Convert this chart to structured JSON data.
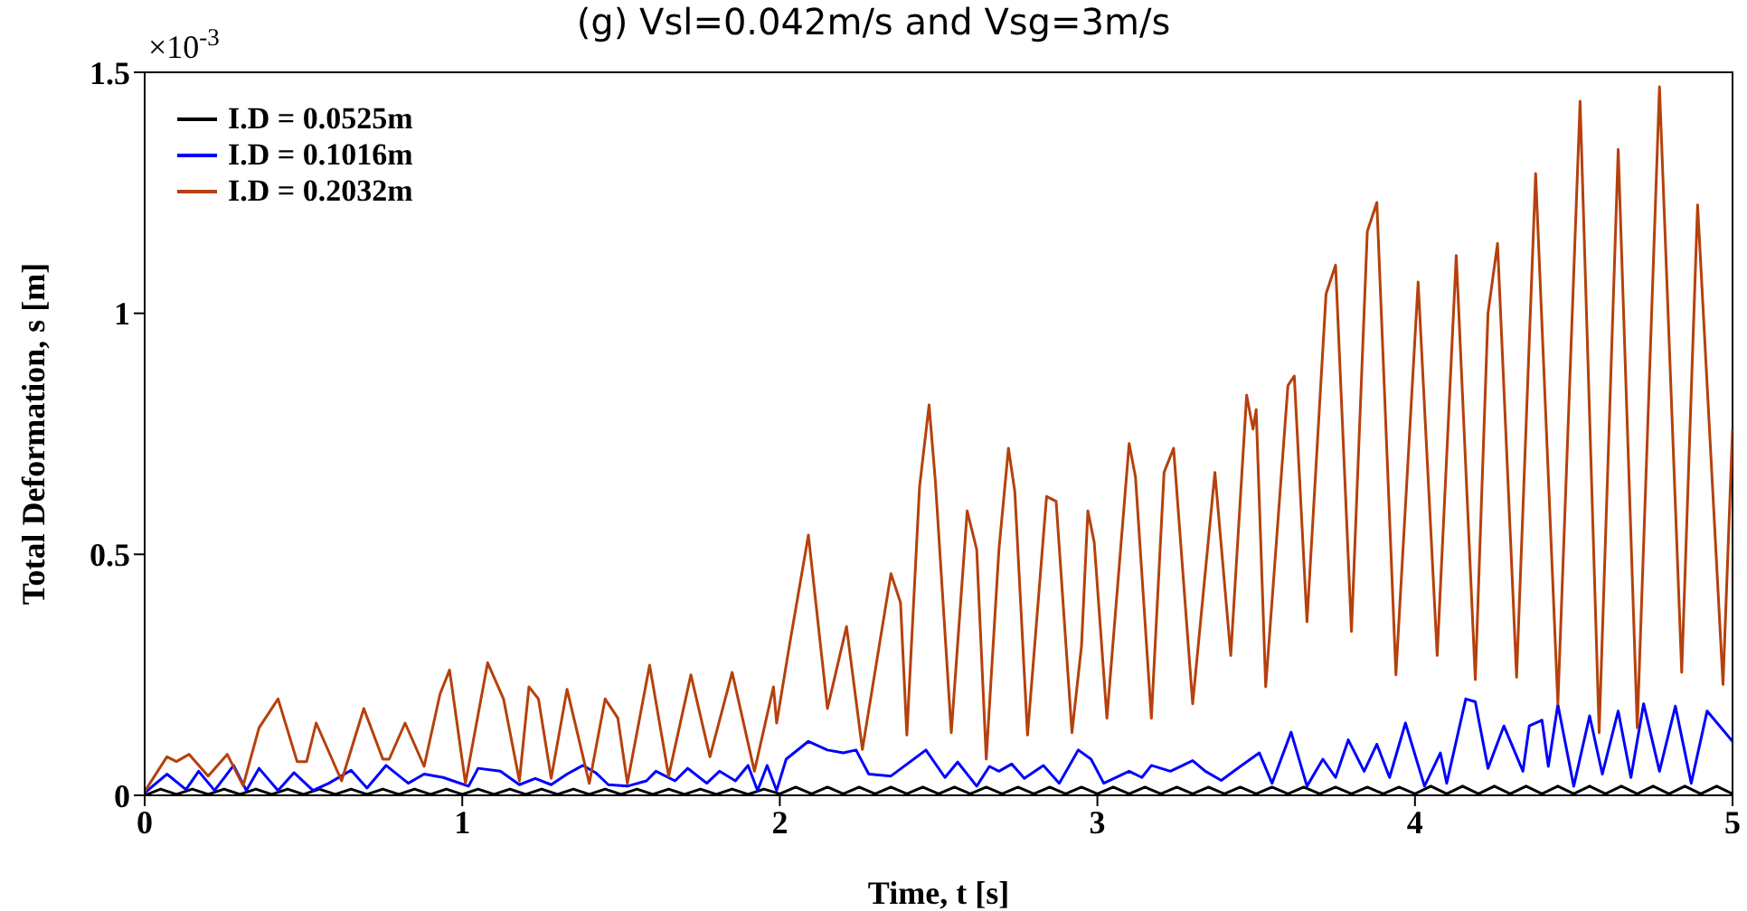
{
  "chart_data": {
    "type": "line",
    "title": "(g) Vsl=0.042m/s and Vsg=3m/s",
    "xlabel": "Time, t [s]",
    "ylabel": "Total Deformation, s [m]",
    "annotations": [
      "×10$^{-3}$"
    ],
    "xlim": [
      0,
      5
    ],
    "xticks": [
      0,
      1,
      2,
      3,
      4,
      5
    ],
    "ylim": [
      0,
      1.5
    ],
    "yticks": [
      0,
      0.5,
      1,
      1.5
    ],
    "grid": false,
    "legend": "top left",
    "line_style": "solid",
    "series": [
      {
        "name": "I.D = 0.0525m",
        "color": "#000000",
        "x": [
          0,
          0.05,
          0.1,
          0.15,
          0.2,
          0.25,
          0.3,
          0.35,
          0.4,
          0.45,
          0.5,
          0.55,
          0.6,
          0.65,
          0.7,
          0.75,
          0.8,
          0.85,
          0.9,
          0.95,
          1,
          1.05,
          1.1,
          1.15,
          1.2,
          1.25,
          1.3,
          1.35,
          1.4,
          1.45,
          1.5,
          1.55,
          1.6,
          1.65,
          1.7,
          1.75,
          1.8,
          1.85,
          1.9,
          1.95,
          2,
          2.05,
          2.1,
          2.15,
          2.2,
          2.25,
          2.3,
          2.35,
          2.4,
          2.45,
          2.5,
          2.55,
          2.6,
          2.65,
          2.7,
          2.75,
          2.8,
          2.85,
          2.9,
          2.95,
          3,
          3.05,
          3.1,
          3.15,
          3.2,
          3.25,
          3.3,
          3.35,
          3.4,
          3.45,
          3.5,
          3.55,
          3.6,
          3.65,
          3.7,
          3.75,
          3.8,
          3.85,
          3.9,
          3.95,
          4,
          4.05,
          4.1,
          4.15,
          4.2,
          4.25,
          4.3,
          4.35,
          4.4,
          4.45,
          4.5,
          4.55,
          4.6,
          4.65,
          4.7,
          4.75,
          4.8,
          4.85,
          4.9,
          4.95,
          5
        ],
        "values": [
          0,
          0.013,
          0.002,
          0.013,
          0.002,
          0.013,
          0.002,
          0.013,
          0.002,
          0.013,
          0.002,
          0.013,
          0.002,
          0.013,
          0.002,
          0.013,
          0.002,
          0.013,
          0.002,
          0.013,
          0.002,
          0.013,
          0.002,
          0.013,
          0.002,
          0.013,
          0.002,
          0.013,
          0.002,
          0.013,
          0.002,
          0.013,
          0.002,
          0.013,
          0.002,
          0.013,
          0.002,
          0.013,
          0.002,
          0.013,
          0.003,
          0.017,
          0.003,
          0.017,
          0.003,
          0.017,
          0.003,
          0.017,
          0.003,
          0.017,
          0.003,
          0.017,
          0.003,
          0.017,
          0.003,
          0.017,
          0.003,
          0.017,
          0.003,
          0.017,
          0.003,
          0.017,
          0.003,
          0.017,
          0.003,
          0.017,
          0.003,
          0.017,
          0.003,
          0.017,
          0.003,
          0.017,
          0.003,
          0.017,
          0.003,
          0.017,
          0.003,
          0.017,
          0.003,
          0.017,
          0.003,
          0.019,
          0.003,
          0.019,
          0.003,
          0.019,
          0.003,
          0.019,
          0.003,
          0.019,
          0.003,
          0.019,
          0.003,
          0.019,
          0.003,
          0.019,
          0.003,
          0.019,
          0.003,
          0.019,
          0.003
        ]
      },
      {
        "name": "I.D = 0.1016m",
        "color": "#0000ff",
        "x": [
          0,
          0.07,
          0.13,
          0.17,
          0.22,
          0.28,
          0.32,
          0.36,
          0.42,
          0.47,
          0.53,
          0.58,
          0.65,
          0.7,
          0.76,
          0.83,
          0.88,
          0.94,
          1.02,
          1.05,
          1.12,
          1.18,
          1.23,
          1.28,
          1.33,
          1.38,
          1.42,
          1.46,
          1.52,
          1.58,
          1.61,
          1.67,
          1.71,
          1.77,
          1.81,
          1.86,
          1.9,
          1.93,
          1.96,
          1.99,
          2.02,
          2.09,
          2.15,
          2.2,
          2.24,
          2.28,
          2.35,
          2.46,
          2.52,
          2.56,
          2.62,
          2.66,
          2.69,
          2.73,
          2.77,
          2.83,
          2.88,
          2.94,
          2.98,
          3.02,
          3.1,
          3.14,
          3.17,
          3.23,
          3.3,
          3.34,
          3.39,
          3.45,
          3.51,
          3.55,
          3.61,
          3.66,
          3.71,
          3.75,
          3.79,
          3.84,
          3.88,
          3.92,
          3.97,
          4.03,
          4.08,
          4.1,
          4.16,
          4.19,
          4.23,
          4.28,
          4.34,
          4.36,
          4.4,
          4.42,
          4.45,
          4.5,
          4.55,
          4.59,
          4.64,
          4.68,
          4.72,
          4.77,
          4.82,
          4.87,
          4.92,
          5
        ],
        "values": [
          0.005,
          0.044,
          0.012,
          0.05,
          0.01,
          0.062,
          0.01,
          0.056,
          0.01,
          0.047,
          0.01,
          0.025,
          0.052,
          0.015,
          0.062,
          0.025,
          0.044,
          0.037,
          0.019,
          0.056,
          0.05,
          0.022,
          0.035,
          0.022,
          0.044,
          0.062,
          0.047,
          0.022,
          0.019,
          0.03,
          0.05,
          0.03,
          0.056,
          0.025,
          0.05,
          0.03,
          0.062,
          0.01,
          0.062,
          0.01,
          0.075,
          0.112,
          0.094,
          0.088,
          0.094,
          0.044,
          0.04,
          0.094,
          0.037,
          0.069,
          0.019,
          0.06,
          0.05,
          0.065,
          0.035,
          0.062,
          0.025,
          0.094,
          0.075,
          0.025,
          0.05,
          0.037,
          0.062,
          0.05,
          0.072,
          0.05,
          0.031,
          0.06,
          0.088,
          0.025,
          0.131,
          0.019,
          0.075,
          0.037,
          0.115,
          0.05,
          0.106,
          0.037,
          0.15,
          0.019,
          0.088,
          0.025,
          0.2,
          0.194,
          0.056,
          0.144,
          0.05,
          0.144,
          0.156,
          0.06,
          0.188,
          0.019,
          0.165,
          0.044,
          0.175,
          0.037,
          0.19,
          0.05,
          0.185,
          0.025,
          0.175,
          0.112
        ]
      },
      {
        "name": "I.D = 0.2032m",
        "color": "#b5410c",
        "x": [
          0,
          0.07,
          0.1,
          0.14,
          0.2,
          0.26,
          0.31,
          0.36,
          0.42,
          0.48,
          0.51,
          0.54,
          0.62,
          0.69,
          0.75,
          0.77,
          0.82,
          0.88,
          0.93,
          0.96,
          1.01,
          1.08,
          1.13,
          1.18,
          1.21,
          1.24,
          1.28,
          1.33,
          1.4,
          1.45,
          1.49,
          1.52,
          1.59,
          1.65,
          1.72,
          1.78,
          1.85,
          1.92,
          1.98,
          1.99,
          2.03,
          2.09,
          2.15,
          2.21,
          2.26,
          2.35,
          2.38,
          2.4,
          2.44,
          2.47,
          2.49,
          2.54,
          2.59,
          2.62,
          2.65,
          2.69,
          2.72,
          2.74,
          2.78,
          2.84,
          2.87,
          2.92,
          2.95,
          2.97,
          2.99,
          3.03,
          3.1,
          3.12,
          3.17,
          3.21,
          3.24,
          3.3,
          3.37,
          3.42,
          3.47,
          3.49,
          3.5,
          3.53,
          3.6,
          3.62,
          3.66,
          3.72,
          3.75,
          3.8,
          3.85,
          3.88,
          3.94,
          4.01,
          4.07,
          4.13,
          4.19,
          4.23,
          4.26,
          4.32,
          4.38,
          4.45,
          4.52,
          4.58,
          4.64,
          4.7,
          4.77,
          4.84,
          4.89,
          4.97,
          5
        ],
        "values": [
          0.008,
          0.08,
          0.07,
          0.085,
          0.04,
          0.085,
          0.02,
          0.14,
          0.2,
          0.07,
          0.07,
          0.15,
          0.03,
          0.18,
          0.075,
          0.075,
          0.15,
          0.06,
          0.21,
          0.26,
          0.025,
          0.275,
          0.2,
          0.03,
          0.225,
          0.2,
          0.035,
          0.22,
          0.025,
          0.2,
          0.16,
          0.025,
          0.27,
          0.04,
          0.25,
          0.08,
          0.255,
          0.05,
          0.225,
          0.15,
          0.31,
          0.54,
          0.18,
          0.35,
          0.095,
          0.46,
          0.4,
          0.125,
          0.64,
          0.81,
          0.65,
          0.13,
          0.59,
          0.51,
          0.075,
          0.51,
          0.72,
          0.63,
          0.125,
          0.62,
          0.61,
          0.13,
          0.31,
          0.59,
          0.525,
          0.16,
          0.73,
          0.66,
          0.16,
          0.67,
          0.72,
          0.19,
          0.67,
          0.29,
          0.83,
          0.76,
          0.8,
          0.225,
          0.85,
          0.87,
          0.36,
          1.04,
          1.1,
          0.34,
          1.17,
          1.23,
          0.25,
          1.065,
          0.29,
          1.12,
          0.24,
          1.0,
          1.145,
          0.245,
          1.29,
          0.19,
          1.44,
          0.13,
          1.34,
          0.14,
          1.47,
          0.255,
          1.225,
          0.23,
          0.76
        ]
      }
    ]
  }
}
